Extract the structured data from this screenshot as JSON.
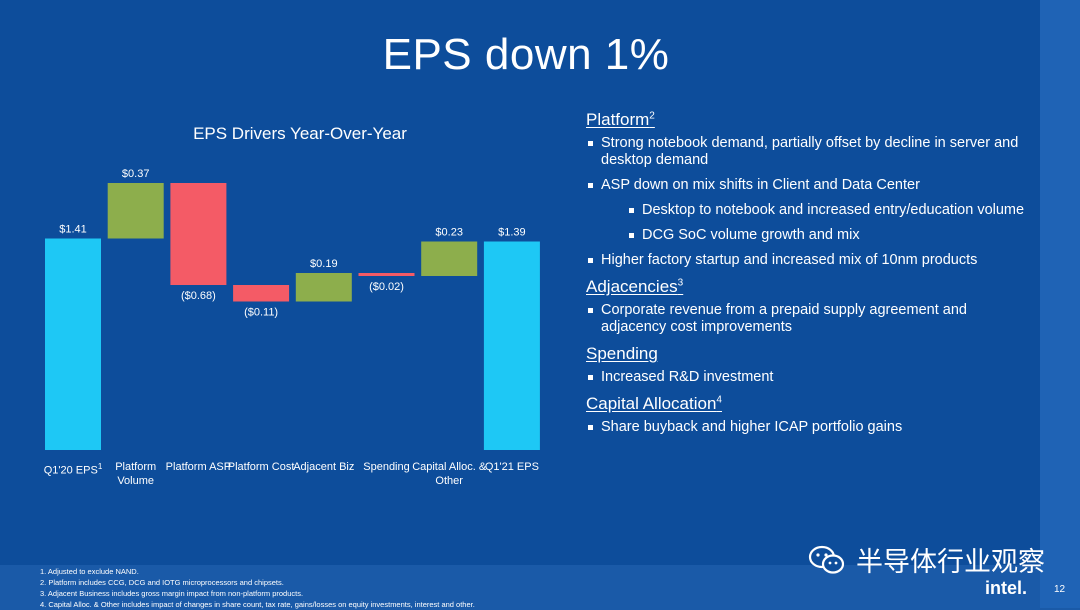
{
  "slide": {
    "title": "EPS down 1%",
    "page_number": "12",
    "brand": "intel."
  },
  "chart_data": {
    "type": "bar",
    "title": "EPS Drivers Year-Over-Year",
    "categories": [
      {
        "label": "Q1'20 EPS",
        "sup": "1"
      },
      {
        "label": "Platform Volume",
        "sup": ""
      },
      {
        "label": "Platform ASP",
        "sup": ""
      },
      {
        "label": "Platform Cost",
        "sup": ""
      },
      {
        "label": "Adjacent Biz",
        "sup": ""
      },
      {
        "label": "Spending",
        "sup": ""
      },
      {
        "label": "Capital Alloc. & Other",
        "sup": ""
      },
      {
        "label": "Q1'21 EPS",
        "sup": ""
      }
    ],
    "values": [
      1.41,
      0.37,
      -0.68,
      -0.11,
      0.19,
      -0.02,
      0.23,
      1.39
    ],
    "kinds": [
      "total",
      "delta",
      "delta",
      "delta",
      "delta",
      "delta",
      "delta",
      "total"
    ],
    "value_labels": [
      "$1.41",
      "$0.37",
      "($0.68)",
      "($0.11)",
      "$0.19",
      "($0.02)",
      "$0.23",
      "$1.39"
    ],
    "colors": {
      "total": "#1ec8f5",
      "increase": "#8dae4c",
      "decrease": "#f45b66"
    },
    "ylim": [
      0,
      1.8
    ]
  },
  "bullets": {
    "sections": [
      {
        "title": "Platform",
        "sup": "2",
        "items": [
          {
            "level": 1,
            "text": "Strong notebook demand, partially offset by decline in server and desktop demand"
          },
          {
            "level": 1,
            "text": "ASP down on mix shifts in Client and Data Center"
          },
          {
            "level": 2,
            "text": "Desktop to notebook and increased entry/education volume"
          },
          {
            "level": 2,
            "text": "DCG SoC volume growth and mix"
          },
          {
            "level": 1,
            "text": "Higher factory startup and increased mix of 10nm products"
          }
        ]
      },
      {
        "title": "Adjacencies",
        "sup": "3",
        "items": [
          {
            "level": 1,
            "text": "Corporate revenue from a prepaid supply agreement and adjacency cost improvements"
          }
        ]
      },
      {
        "title": "Spending",
        "sup": "",
        "items": [
          {
            "level": 1,
            "text": "Increased R&D investment"
          }
        ]
      },
      {
        "title": "Capital Allocation",
        "sup": "4",
        "items": [
          {
            "level": 1,
            "text": "Share buyback and higher ICAP portfolio gains"
          }
        ]
      }
    ]
  },
  "footnotes": [
    "1. Adjusted to exclude NAND.",
    "2. Platform includes CCG, DCG and IOTG microprocessors and chipsets.",
    "3. Adjacent Business includes gross margin impact from non-platform products.",
    "4. Capital Alloc. & Other includes impact of changes in share count, tax rate, gains/losses on equity investments, interest and other."
  ],
  "watermark": {
    "text": "半导体行业观察",
    "icon": "wechat-icon"
  }
}
